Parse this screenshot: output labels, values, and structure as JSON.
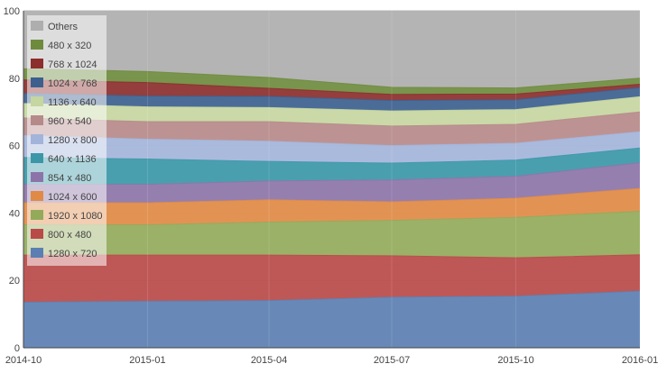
{
  "chart_data": {
    "type": "area",
    "stacked": true,
    "x": [
      "2014-10-01",
      "2015-01-01",
      "2015-04-01",
      "2015-07-01",
      "2015-10-01",
      "2016-01-01"
    ],
    "x_tick_labels": [
      "2014-10",
      "2015-01",
      "2015-04",
      "2015-07",
      "2015-10",
      "2016-01"
    ],
    "y_tick_labels": [
      "0",
      "20",
      "40",
      "60",
      "80",
      "100"
    ],
    "ylim": [
      0,
      100
    ],
    "grid": true,
    "legend_position": "top-left",
    "series": [
      {
        "name": "1280 x 720",
        "color": "#5b7fb2",
        "values": [
          13.5,
          13.8,
          14.0,
          15.0,
          15.3,
          16.8
        ]
      },
      {
        "name": "800 x 480",
        "color": "#b94a48",
        "values": [
          14.0,
          13.7,
          13.5,
          12.3,
          11.4,
          10.8
        ]
      },
      {
        "name": "1920 x 1080",
        "color": "#93aa5a",
        "values": [
          9.0,
          9.0,
          9.8,
          10.5,
          12.0,
          12.9
        ]
      },
      {
        "name": "1024 x 600",
        "color": "#e08a45",
        "values": [
          6.5,
          6.5,
          6.6,
          5.5,
          5.7,
          6.8
        ]
      },
      {
        "name": "854 x 480",
        "color": "#8c74a8",
        "values": [
          5.5,
          5.5,
          5.6,
          6.5,
          6.5,
          7.6
        ]
      },
      {
        "name": "640 x 1136",
        "color": "#3b97a8",
        "values": [
          8.0,
          7.5,
          5.8,
          5.0,
          4.8,
          4.4
        ]
      },
      {
        "name": "1280 x 800",
        "color": "#a3b4da",
        "values": [
          6.5,
          5.9,
          6.0,
          5.2,
          5.0,
          4.8
        ]
      },
      {
        "name": "960 x 540",
        "color": "#b68a89",
        "values": [
          5.2,
          5.2,
          5.8,
          5.8,
          5.6,
          5.9
        ]
      },
      {
        "name": "1136 x 640",
        "color": "#c5d6a0",
        "values": [
          4.3,
          4.4,
          4.2,
          4.5,
          4.4,
          4.5
        ]
      },
      {
        "name": "1024 x 768",
        "color": "#3c5f8e",
        "values": [
          3.0,
          3.2,
          3.3,
          3.1,
          2.9,
          2.7
        ]
      },
      {
        "name": "768 x 1024",
        "color": "#8b2e2c",
        "values": [
          4.0,
          4.0,
          2.4,
          1.8,
          1.7,
          1.0
        ]
      },
      {
        "name": "480 x 320",
        "color": "#6e8b3d",
        "values": [
          3.3,
          3.3,
          3.2,
          2.1,
          1.8,
          1.8
        ]
      },
      {
        "name": "Others",
        "color": "#aeaeae",
        "values": [
          17.2,
          18.0,
          19.8,
          22.7,
          22.9,
          20.0
        ]
      }
    ]
  }
}
